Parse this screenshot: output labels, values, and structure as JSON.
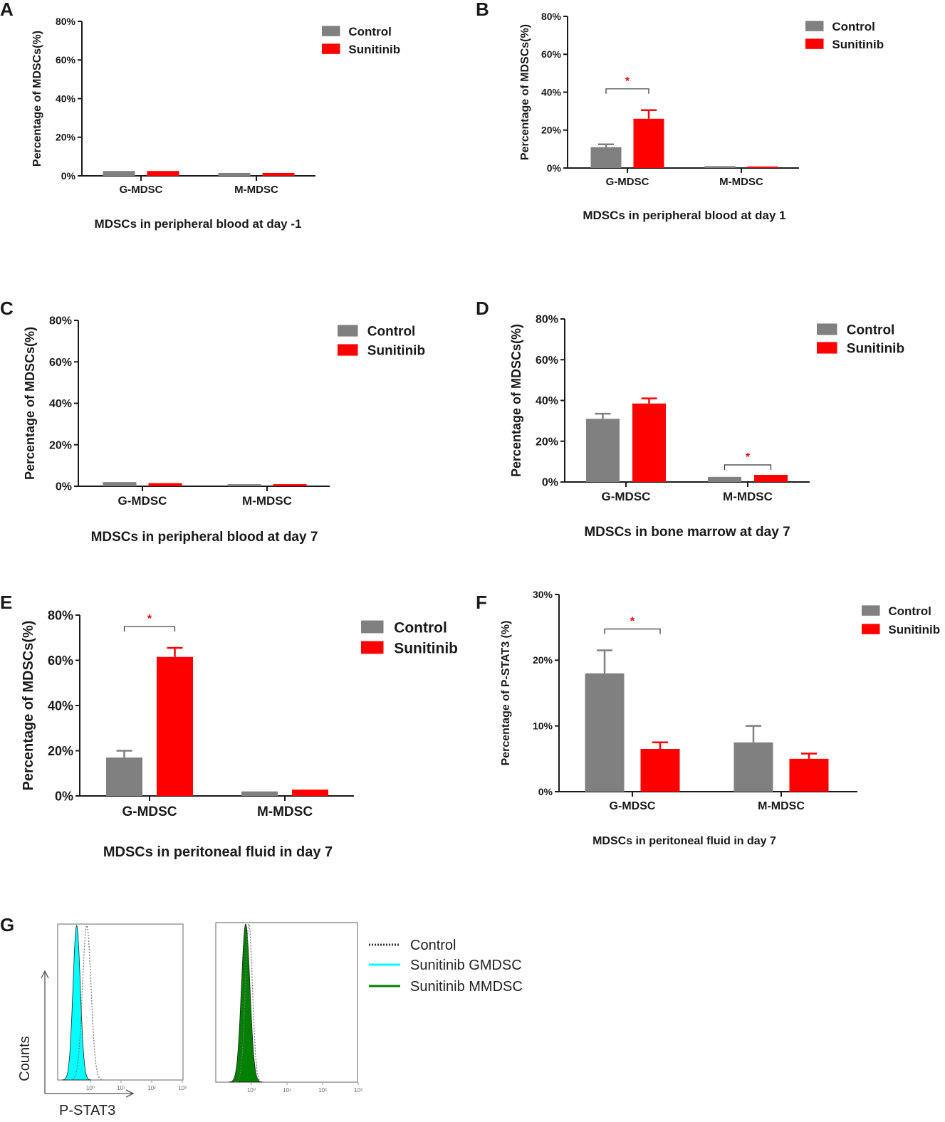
{
  "colors": {
    "control": "#808080",
    "sunitinib": "#ff0000",
    "axis": "#1a1a1a",
    "sig": "#ff0000",
    "cyan": "#00ffff",
    "green": "#008000"
  },
  "chart_data": [
    {
      "panel": "A",
      "type": "bar",
      "title": "MDSCs in peripheral blood at day -1",
      "ylabel": "Percentage of MDSCs(%)",
      "ylim": [
        0,
        80
      ],
      "yticks": [
        "0%",
        "20%",
        "40%",
        "60%",
        "80%"
      ],
      "ytick_values": [
        0,
        20,
        40,
        60,
        80
      ],
      "categories": [
        "G-MDSC",
        "M-MDSC"
      ],
      "legend": "top-right",
      "series": [
        {
          "name": "Control",
          "values": [
            2.5,
            1.5
          ],
          "errors": [
            0,
            0
          ]
        },
        {
          "name": "Sunitinib",
          "values": [
            2.5,
            1.5
          ],
          "errors": [
            0,
            0
          ]
        }
      ],
      "significance": []
    },
    {
      "panel": "B",
      "type": "bar",
      "title": "MDSCs in peripheral blood at day 1",
      "ylabel": "Percentage of MDSCs(%)",
      "ylim": [
        0,
        80
      ],
      "yticks": [
        "0%",
        "20%",
        "40%",
        "60%",
        "80%"
      ],
      "ytick_values": [
        0,
        20,
        40,
        60,
        80
      ],
      "categories": [
        "G-MDSC",
        "M-MDSC"
      ],
      "legend": "top-right",
      "series": [
        {
          "name": "Control",
          "values": [
            11,
            1
          ],
          "errors": [
            1.5,
            0
          ]
        },
        {
          "name": "Sunitinib",
          "values": [
            26,
            0.8
          ],
          "errors": [
            4.5,
            0
          ]
        }
      ],
      "significance": [
        {
          "category": "G-MDSC",
          "label": "*"
        }
      ]
    },
    {
      "panel": "C",
      "type": "bar",
      "title": "MDSCs in peripheral blood at day 7",
      "ylabel": "Percentage of MDSCs(%)",
      "ylim": [
        0,
        80
      ],
      "yticks": [
        "0%",
        "20%",
        "40%",
        "60%",
        "80%"
      ],
      "ytick_values": [
        0,
        20,
        40,
        60,
        80
      ],
      "categories": [
        "G-MDSC",
        "M-MDSC"
      ],
      "legend": "top-right",
      "series": [
        {
          "name": "Control",
          "values": [
            2,
            1
          ],
          "errors": [
            0,
            0
          ]
        },
        {
          "name": "Sunitinib",
          "values": [
            1.5,
            1
          ],
          "errors": [
            0,
            0
          ]
        }
      ],
      "significance": []
    },
    {
      "panel": "D",
      "type": "bar",
      "title": "MDSCs in bone marrow at day 7",
      "ylabel": "Percentage of MDSCs(%)",
      "ylim": [
        0,
        80
      ],
      "yticks": [
        "0%",
        "20%",
        "40%",
        "60%",
        "80%"
      ],
      "ytick_values": [
        0,
        20,
        40,
        60,
        80
      ],
      "categories": [
        "G-MDSC",
        "M-MDSC"
      ],
      "legend": "top-right",
      "series": [
        {
          "name": "Control",
          "values": [
            31,
            2.5
          ],
          "errors": [
            2.5,
            0
          ]
        },
        {
          "name": "Sunitinib",
          "values": [
            38.5,
            3.5
          ],
          "errors": [
            2.5,
            0
          ]
        }
      ],
      "significance": [
        {
          "category": "M-MDSC",
          "label": "*"
        }
      ]
    },
    {
      "panel": "E",
      "type": "bar",
      "title": "MDSCs in peritoneal fluid in day 7",
      "ylabel": "Percentage of MDSCs(%)",
      "ylim": [
        0,
        80
      ],
      "yticks": [
        "0%",
        "20%",
        "40%",
        "60%",
        "80%"
      ],
      "ytick_values": [
        0,
        20,
        40,
        60,
        80
      ],
      "categories": [
        "G-MDSC",
        "M-MDSC"
      ],
      "legend": "top-right",
      "series": [
        {
          "name": "Control",
          "values": [
            17,
            2
          ],
          "errors": [
            3,
            0
          ]
        },
        {
          "name": "Sunitinib",
          "values": [
            61.5,
            2.8
          ],
          "errors": [
            4,
            0
          ]
        }
      ],
      "significance": [
        {
          "category": "G-MDSC",
          "label": "*"
        }
      ]
    },
    {
      "panel": "F",
      "type": "bar",
      "title": "MDSCs in peritoneal fluid in day 7",
      "ylabel": "Percentage of P-STAT3 (%)",
      "ylim": [
        0,
        30
      ],
      "yticks": [
        "0%",
        "10%",
        "20%",
        "30%"
      ],
      "ytick_values": [
        0,
        10,
        20,
        30
      ],
      "categories": [
        "G-MDSC",
        "M-MDSC"
      ],
      "legend": "top-right",
      "series": [
        {
          "name": "Control",
          "values": [
            18,
            7.5
          ],
          "errors": [
            3.5,
            2.5
          ]
        },
        {
          "name": "Sunitinib",
          "values": [
            6.5,
            5
          ],
          "errors": [
            1,
            0.8
          ]
        }
      ],
      "significance": [
        {
          "category": "G-MDSC",
          "label": "*"
        }
      ]
    },
    {
      "panel": "G",
      "type": "histogram",
      "xlabel": "P-STAT3",
      "ylabel": "Counts",
      "xscale": "log",
      "xticks": [
        "10⁰",
        "10¹",
        "10²",
        "10³"
      ],
      "legend": [
        {
          "name": "Control",
          "style": "dotted"
        },
        {
          "name": "Sunitinib GMDSC",
          "style": "cyan"
        },
        {
          "name": "Sunitinib MMDSC",
          "style": "green"
        }
      ],
      "plots": [
        {
          "series": [
            {
              "name": "Sunitinib GMDSC",
              "peak_log10": -0.45,
              "spread_log10": 0.12
            },
            {
              "name": "Control",
              "peak_log10": -0.12,
              "spread_log10": 0.14
            }
          ]
        },
        {
          "series": [
            {
              "name": "Sunitinib MMDSC",
              "peak_log10": -0.16,
              "spread_log10": 0.12
            },
            {
              "name": "Control",
              "peak_log10": -0.07,
              "spread_log10": 0.1
            }
          ]
        }
      ]
    }
  ]
}
